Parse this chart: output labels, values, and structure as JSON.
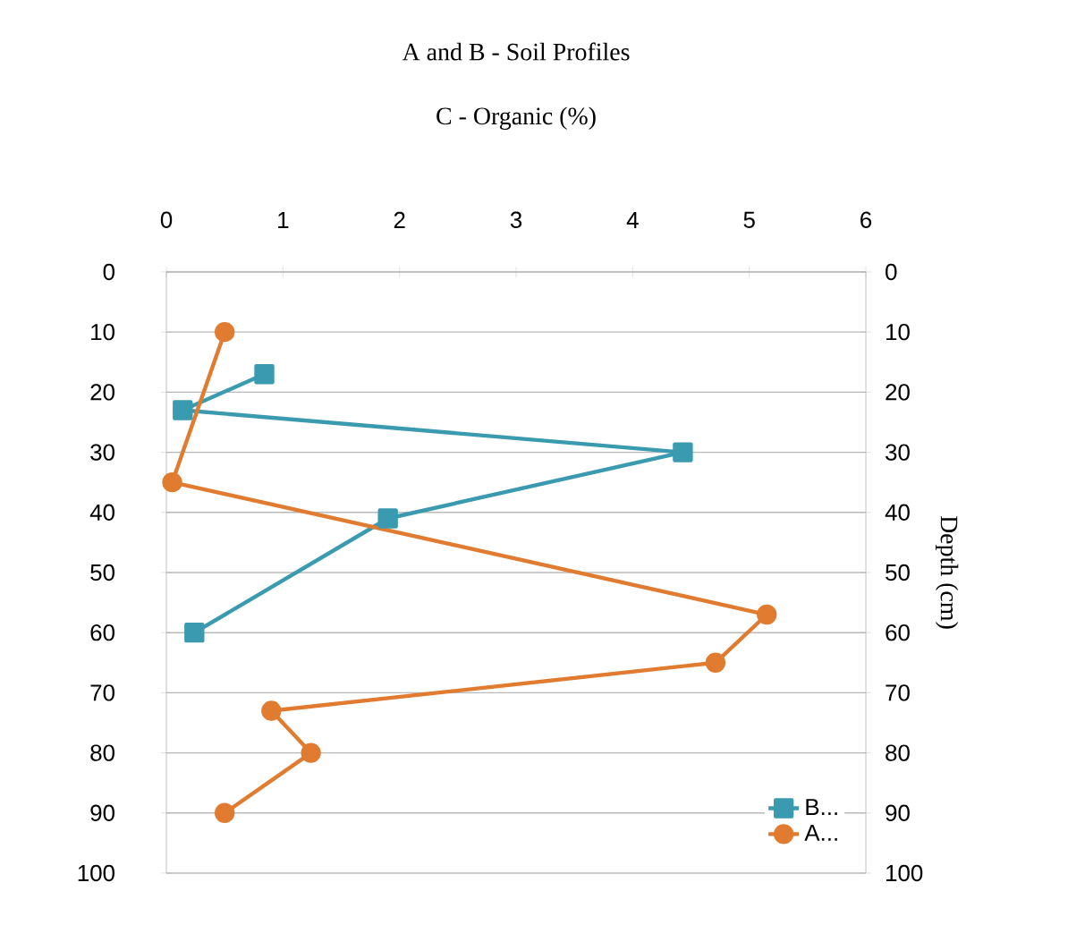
{
  "chart_data": {
    "type": "line",
    "title": "A and B - Soil Profiles",
    "subtitle": "C - Organic (%)",
    "y2label": "Depth (cm)",
    "xlim": [
      0,
      6
    ],
    "xticks": [
      0,
      1,
      2,
      3,
      4,
      5,
      6
    ],
    "ylim": [
      100,
      0
    ],
    "yticks": [
      0,
      10,
      20,
      30,
      40,
      50,
      60,
      70,
      80,
      90,
      100
    ],
    "y2lim": [
      100,
      0
    ],
    "y2ticks": [
      0,
      10,
      20,
      30,
      40,
      50,
      60,
      70,
      80,
      90,
      100
    ],
    "grid": "y",
    "legend": "bottom right",
    "line_style": "solid",
    "series": [
      {
        "name": "B...",
        "color": "#3a9ab0",
        "marker": "square",
        "x": [
          0.84,
          0.14,
          4.43,
          1.9,
          0.24
        ],
        "values": [
          17,
          23,
          30,
          41,
          60
        ]
      },
      {
        "name": "A...",
        "color": "#e07b30",
        "marker": "circle",
        "x": [
          0.5,
          0.05,
          5.15,
          4.71,
          0.9,
          1.24,
          0.5
        ],
        "values": [
          10,
          35,
          57,
          65,
          73,
          80,
          90
        ]
      }
    ]
  }
}
